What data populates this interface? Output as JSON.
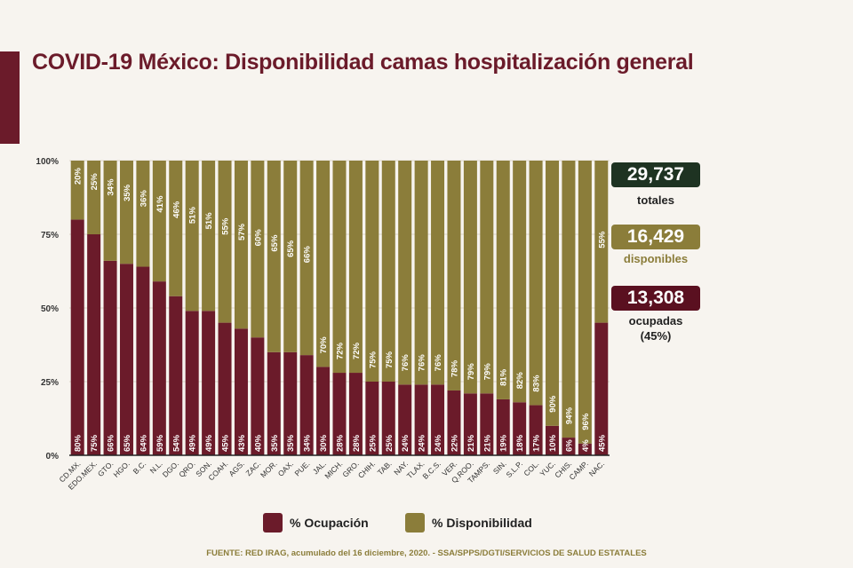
{
  "title": "COVID-19 México: Disponibilidad camas hospitalización general",
  "colors": {
    "ocupacion": "#6b1b2a",
    "disponibilidad": "#8b7d3a",
    "totales": "#1e3322"
  },
  "summary": {
    "totales_value": "29,737",
    "totales_label": "totales",
    "disponibles_value": "16,429",
    "disponibles_label": "disponibles",
    "ocupadas_value": "13,308",
    "ocupadas_label": "ocupadas",
    "ocupadas_pct": "(45%)"
  },
  "legend": {
    "ocupacion": "% Ocupación",
    "disponibilidad": "% Disponibilidad"
  },
  "footer": "FUENTE: RED IRAG, acumulado del 16 diciembre, 2020. -  SSA/SPPS/DGTI/SERVICIOS DE SALUD ESTATALES",
  "chart_data": {
    "type": "bar",
    "stacked": true,
    "title": "COVID-19 México: Disponibilidad camas hospitalización general",
    "ylim": [
      0,
      100
    ],
    "yticks": [
      "0%",
      "25%",
      "50%",
      "75%",
      "100%"
    ],
    "legend_position": "bottom",
    "categories": [
      "CD.MX.",
      "EDO.MEX.",
      "GTO.",
      "HGO.",
      "B.C.",
      "N.L.",
      "DGO.",
      "QRO.",
      "SON.",
      "COAH.",
      "AGS.",
      "ZAC.",
      "MOR.",
      "OAX.",
      "PUE.",
      "JAL.",
      "MICH.",
      "GRO.",
      "CHIH.",
      "TAB.",
      "NAY.",
      "TLAX.",
      "B.C.S.",
      "VER.",
      "Q.ROO.",
      "TAMPS.",
      "SIN.",
      "S.L.P.",
      "COL.",
      "YUC.",
      "CHIS.",
      "CAMP.",
      "NAC."
    ],
    "series": [
      {
        "name": "% Ocupación",
        "values": [
          80,
          75,
          66,
          65,
          64,
          59,
          54,
          49,
          49,
          45,
          43,
          40,
          35,
          35,
          34,
          30,
          28,
          28,
          25,
          25,
          24,
          24,
          24,
          22,
          21,
          21,
          19,
          18,
          17,
          10,
          6,
          4,
          45
        ]
      },
      {
        "name": "% Disponibilidad",
        "values": [
          20,
          25,
          34,
          35,
          36,
          41,
          46,
          51,
          51,
          55,
          57,
          60,
          65,
          65,
          66,
          70,
          72,
          72,
          75,
          75,
          76,
          76,
          76,
          78,
          79,
          79,
          81,
          82,
          83,
          90,
          94,
          96,
          55
        ]
      }
    ]
  }
}
